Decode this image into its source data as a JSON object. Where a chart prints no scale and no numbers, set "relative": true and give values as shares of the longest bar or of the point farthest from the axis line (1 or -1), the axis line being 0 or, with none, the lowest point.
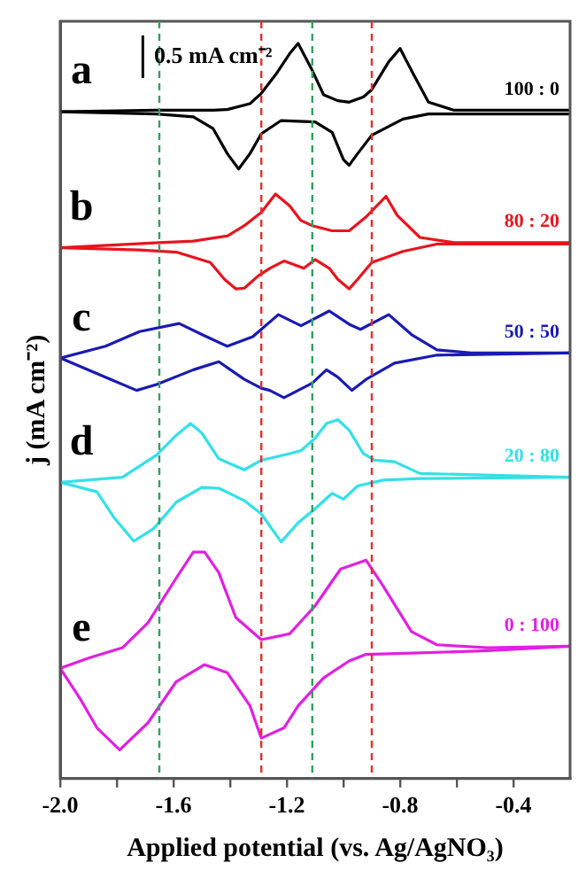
{
  "chart_data": {
    "type": "line",
    "relative": true,
    "xlabel": "Applied potential (vs. Ag/AgNO₃)",
    "ylabel": "j (mA cm⁻²)",
    "xlim": [
      -2.0,
      -0.2
    ],
    "xticks": [
      {
        "value": -2.0,
        "label": "-2.0"
      },
      {
        "value": -1.8,
        "label": null
      },
      -1.6,
      {
        "value": -1.4,
        "label": null
      },
      -1.2,
      {
        "value": -1.0,
        "label": null
      },
      -0.8,
      {
        "value": -0.6,
        "label": null
      },
      -0.4
    ],
    "marker": "none",
    "line_style": "solid",
    "grid": false,
    "legend": false,
    "tick_labels": "x",
    "series": [
      {
        "name": "100 : 0",
        "color": "#000000",
        "x": [
          -2.0,
          -1.66,
          -1.46,
          -1.41,
          -1.33,
          -1.29,
          -1.24,
          -1.19,
          -1.16,
          -1.11,
          -1.07,
          -1.02,
          -0.98,
          -0.93,
          -0.9,
          -0.84,
          -0.8,
          -0.76,
          -0.7,
          -0.61,
          -0.2
        ],
        "values": [
          0.907,
          0.909,
          0.909,
          0.91,
          0.918,
          0.932,
          0.957,
          0.986,
          1.0,
          0.963,
          0.93,
          0.922,
          0.92,
          0.927,
          0.937,
          0.975,
          0.993,
          0.963,
          0.92,
          0.909,
          0.909
        ]
      },
      {
        "color": "#000000",
        "x": [
          -0.2,
          -0.7,
          -0.79,
          -0.9,
          -0.95,
          -0.98,
          -1.0,
          -1.04,
          -1.1,
          -1.22,
          -1.29,
          -1.33,
          -1.37,
          -1.41,
          -1.46,
          -1.53,
          -1.66,
          -2.0
        ],
        "values": [
          0.904,
          0.904,
          0.897,
          0.875,
          0.85,
          0.834,
          0.842,
          0.879,
          0.893,
          0.895,
          0.877,
          0.85,
          0.829,
          0.85,
          0.884,
          0.9,
          0.904,
          0.907
        ]
      },
      {
        "name": "80 : 20",
        "color": "#e8141e",
        "x": [
          -2.0,
          -1.65,
          -1.53,
          -1.41,
          -1.35,
          -1.29,
          -1.24,
          -1.19,
          -1.15,
          -1.11,
          -1.04,
          -0.98,
          -0.92,
          -0.85,
          -0.81,
          -0.73,
          -0.61,
          -0.2
        ],
        "values": [
          0.722,
          0.729,
          0.731,
          0.738,
          0.752,
          0.77,
          0.795,
          0.779,
          0.759,
          0.752,
          0.745,
          0.745,
          0.764,
          0.792,
          0.766,
          0.736,
          0.729,
          0.729
        ]
      },
      {
        "color": "#e8141e",
        "x": [
          -0.2,
          -0.67,
          -0.79,
          -0.9,
          -0.95,
          -0.98,
          -1.02,
          -1.05,
          -1.1,
          -1.14,
          -1.21,
          -1.26,
          -1.3,
          -1.35,
          -1.38,
          -1.42,
          -1.47,
          -1.59,
          -1.72,
          -2.0
        ],
        "values": [
          0.727,
          0.727,
          0.717,
          0.702,
          0.679,
          0.666,
          0.679,
          0.694,
          0.706,
          0.694,
          0.704,
          0.694,
          0.684,
          0.667,
          0.666,
          0.679,
          0.702,
          0.716,
          0.719,
          0.722
        ]
      },
      {
        "name": "50 : 50",
        "color": "#1a1ab4",
        "x": [
          -2.0,
          -1.84,
          -1.72,
          -1.58,
          -1.5,
          -1.41,
          -1.32,
          -1.23,
          -1.15,
          -1.05,
          -0.98,
          -0.94,
          -0.84,
          -0.76,
          -0.67,
          -0.55,
          -0.2
        ],
        "values": [
          0.572,
          0.588,
          0.608,
          0.619,
          0.604,
          0.588,
          0.601,
          0.631,
          0.616,
          0.636,
          0.618,
          0.611,
          0.631,
          0.604,
          0.583,
          0.579,
          0.579
        ]
      },
      {
        "color": "#1a1ab4",
        "x": [
          -0.2,
          -0.67,
          -0.82,
          -0.92,
          -0.97,
          -1.02,
          -1.06,
          -1.11,
          -1.21,
          -1.26,
          -1.29,
          -1.35,
          -1.44,
          -1.53,
          -1.66,
          -1.73,
          -1.84,
          -2.0
        ],
        "values": [
          0.579,
          0.576,
          0.565,
          0.543,
          0.528,
          0.546,
          0.556,
          0.538,
          0.518,
          0.528,
          0.531,
          0.543,
          0.567,
          0.556,
          0.536,
          0.528,
          0.546,
          0.572
        ]
      },
      {
        "name": "20 : 80",
        "color": "#33e0e8",
        "x": [
          -2.0,
          -1.78,
          -1.66,
          -1.59,
          -1.54,
          -1.5,
          -1.44,
          -1.35,
          -1.29,
          -1.19,
          -1.15,
          -1.1,
          -1.06,
          -1.02,
          -0.98,
          -0.93,
          -0.89,
          -0.82,
          -0.73,
          -0.2
        ],
        "values": [
          0.403,
          0.41,
          0.44,
          0.467,
          0.483,
          0.47,
          0.435,
          0.42,
          0.433,
          0.442,
          0.446,
          0.463,
          0.483,
          0.488,
          0.474,
          0.442,
          0.433,
          0.431,
          0.415,
          0.41
        ]
      },
      {
        "color": "#33e0e8",
        "x": [
          -0.2,
          -0.73,
          -0.86,
          -0.95,
          -1.0,
          -1.04,
          -1.1,
          -1.16,
          -1.22,
          -1.29,
          -1.35,
          -1.44,
          -1.5,
          -1.59,
          -1.67,
          -1.74,
          -1.81,
          -1.87,
          -2.0
        ],
        "values": [
          0.41,
          0.408,
          0.406,
          0.398,
          0.38,
          0.388,
          0.367,
          0.348,
          0.322,
          0.36,
          0.378,
          0.395,
          0.396,
          0.376,
          0.34,
          0.323,
          0.355,
          0.39,
          0.403
        ]
      },
      {
        "name": "0 : 100",
        "color": "#e020e0",
        "x": [
          -2.0,
          -1.9,
          -1.78,
          -1.69,
          -1.59,
          -1.53,
          -1.49,
          -1.44,
          -1.38,
          -1.29,
          -1.19,
          -1.1,
          -1.01,
          -0.92,
          -0.86,
          -0.76,
          -0.67,
          -0.49,
          -0.2
        ],
        "values": [
          0.15,
          0.164,
          0.178,
          0.212,
          0.273,
          0.308,
          0.308,
          0.28,
          0.219,
          0.189,
          0.197,
          0.235,
          0.285,
          0.297,
          0.262,
          0.2,
          0.182,
          0.178,
          0.18
        ]
      },
      {
        "color": "#e020e0",
        "x": [
          -0.2,
          -0.49,
          -0.73,
          -0.92,
          -0.98,
          -1.07,
          -1.16,
          -1.21,
          -1.29,
          -1.33,
          -1.41,
          -1.49,
          -1.59,
          -1.69,
          -1.79,
          -1.87,
          -1.93,
          -2.0
        ],
        "values": [
          0.18,
          0.174,
          0.171,
          0.169,
          0.16,
          0.137,
          0.099,
          0.069,
          0.055,
          0.099,
          0.144,
          0.155,
          0.132,
          0.076,
          0.039,
          0.069,
          0.109,
          0.15
        ]
      }
    ],
    "ref_lines": [
      {
        "axis": "x",
        "value": -1.29,
        "color": "#e03030",
        "line_style": "dashed"
      },
      {
        "axis": "x",
        "value": -0.9,
        "color": "#e03030",
        "line_style": "dashed"
      },
      {
        "axis": "x",
        "value": -1.65,
        "color": "#30a060",
        "line_style": "dashed"
      },
      {
        "axis": "x",
        "value": -1.11,
        "color": "#30a060",
        "line_style": "dashed"
      }
    ],
    "annotations": [
      "0.5 mA cm⁻²",
      "a",
      "b",
      "c",
      "d",
      "e"
    ]
  }
}
